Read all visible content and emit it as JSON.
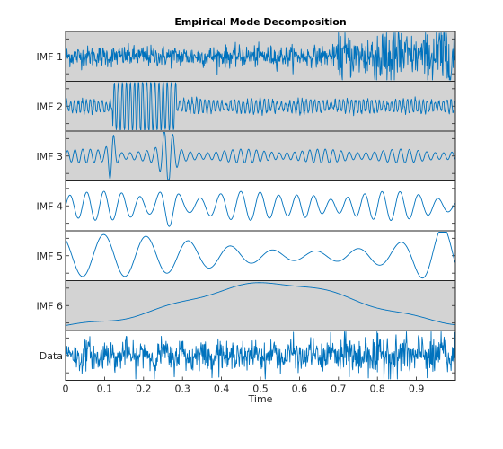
{
  "chart_data": {
    "type": "line",
    "title": "Empirical Mode Decomposition",
    "xlabel": "Time",
    "xlim": [
      0,
      1
    ],
    "x_ticks": [
      "0",
      "0.1",
      "0.2",
      "0.3",
      "0.4",
      "0.5",
      "0.6",
      "0.7",
      "0.8",
      "0.9"
    ],
    "x_tick_values": [
      0,
      0.1,
      0.2,
      0.3,
      0.4,
      0.5,
      0.6,
      0.7,
      0.8,
      0.9
    ],
    "line_color": "#0072bd",
    "panel_colors": {
      "highlighted": "#d3d3d3",
      "normal": "#ffffff"
    },
    "series": [
      {
        "name": "IMF 1",
        "highlighted": true
      },
      {
        "name": "IMF 2",
        "highlighted": true
      },
      {
        "name": "IMF 3",
        "highlighted": true
      },
      {
        "name": "IMF 4",
        "highlighted": false
      },
      {
        "name": "IMF 5",
        "highlighted": false
      },
      {
        "name": "IMF 6",
        "highlighted": true
      },
      {
        "name": "Data",
        "highlighted": false
      }
    ]
  }
}
